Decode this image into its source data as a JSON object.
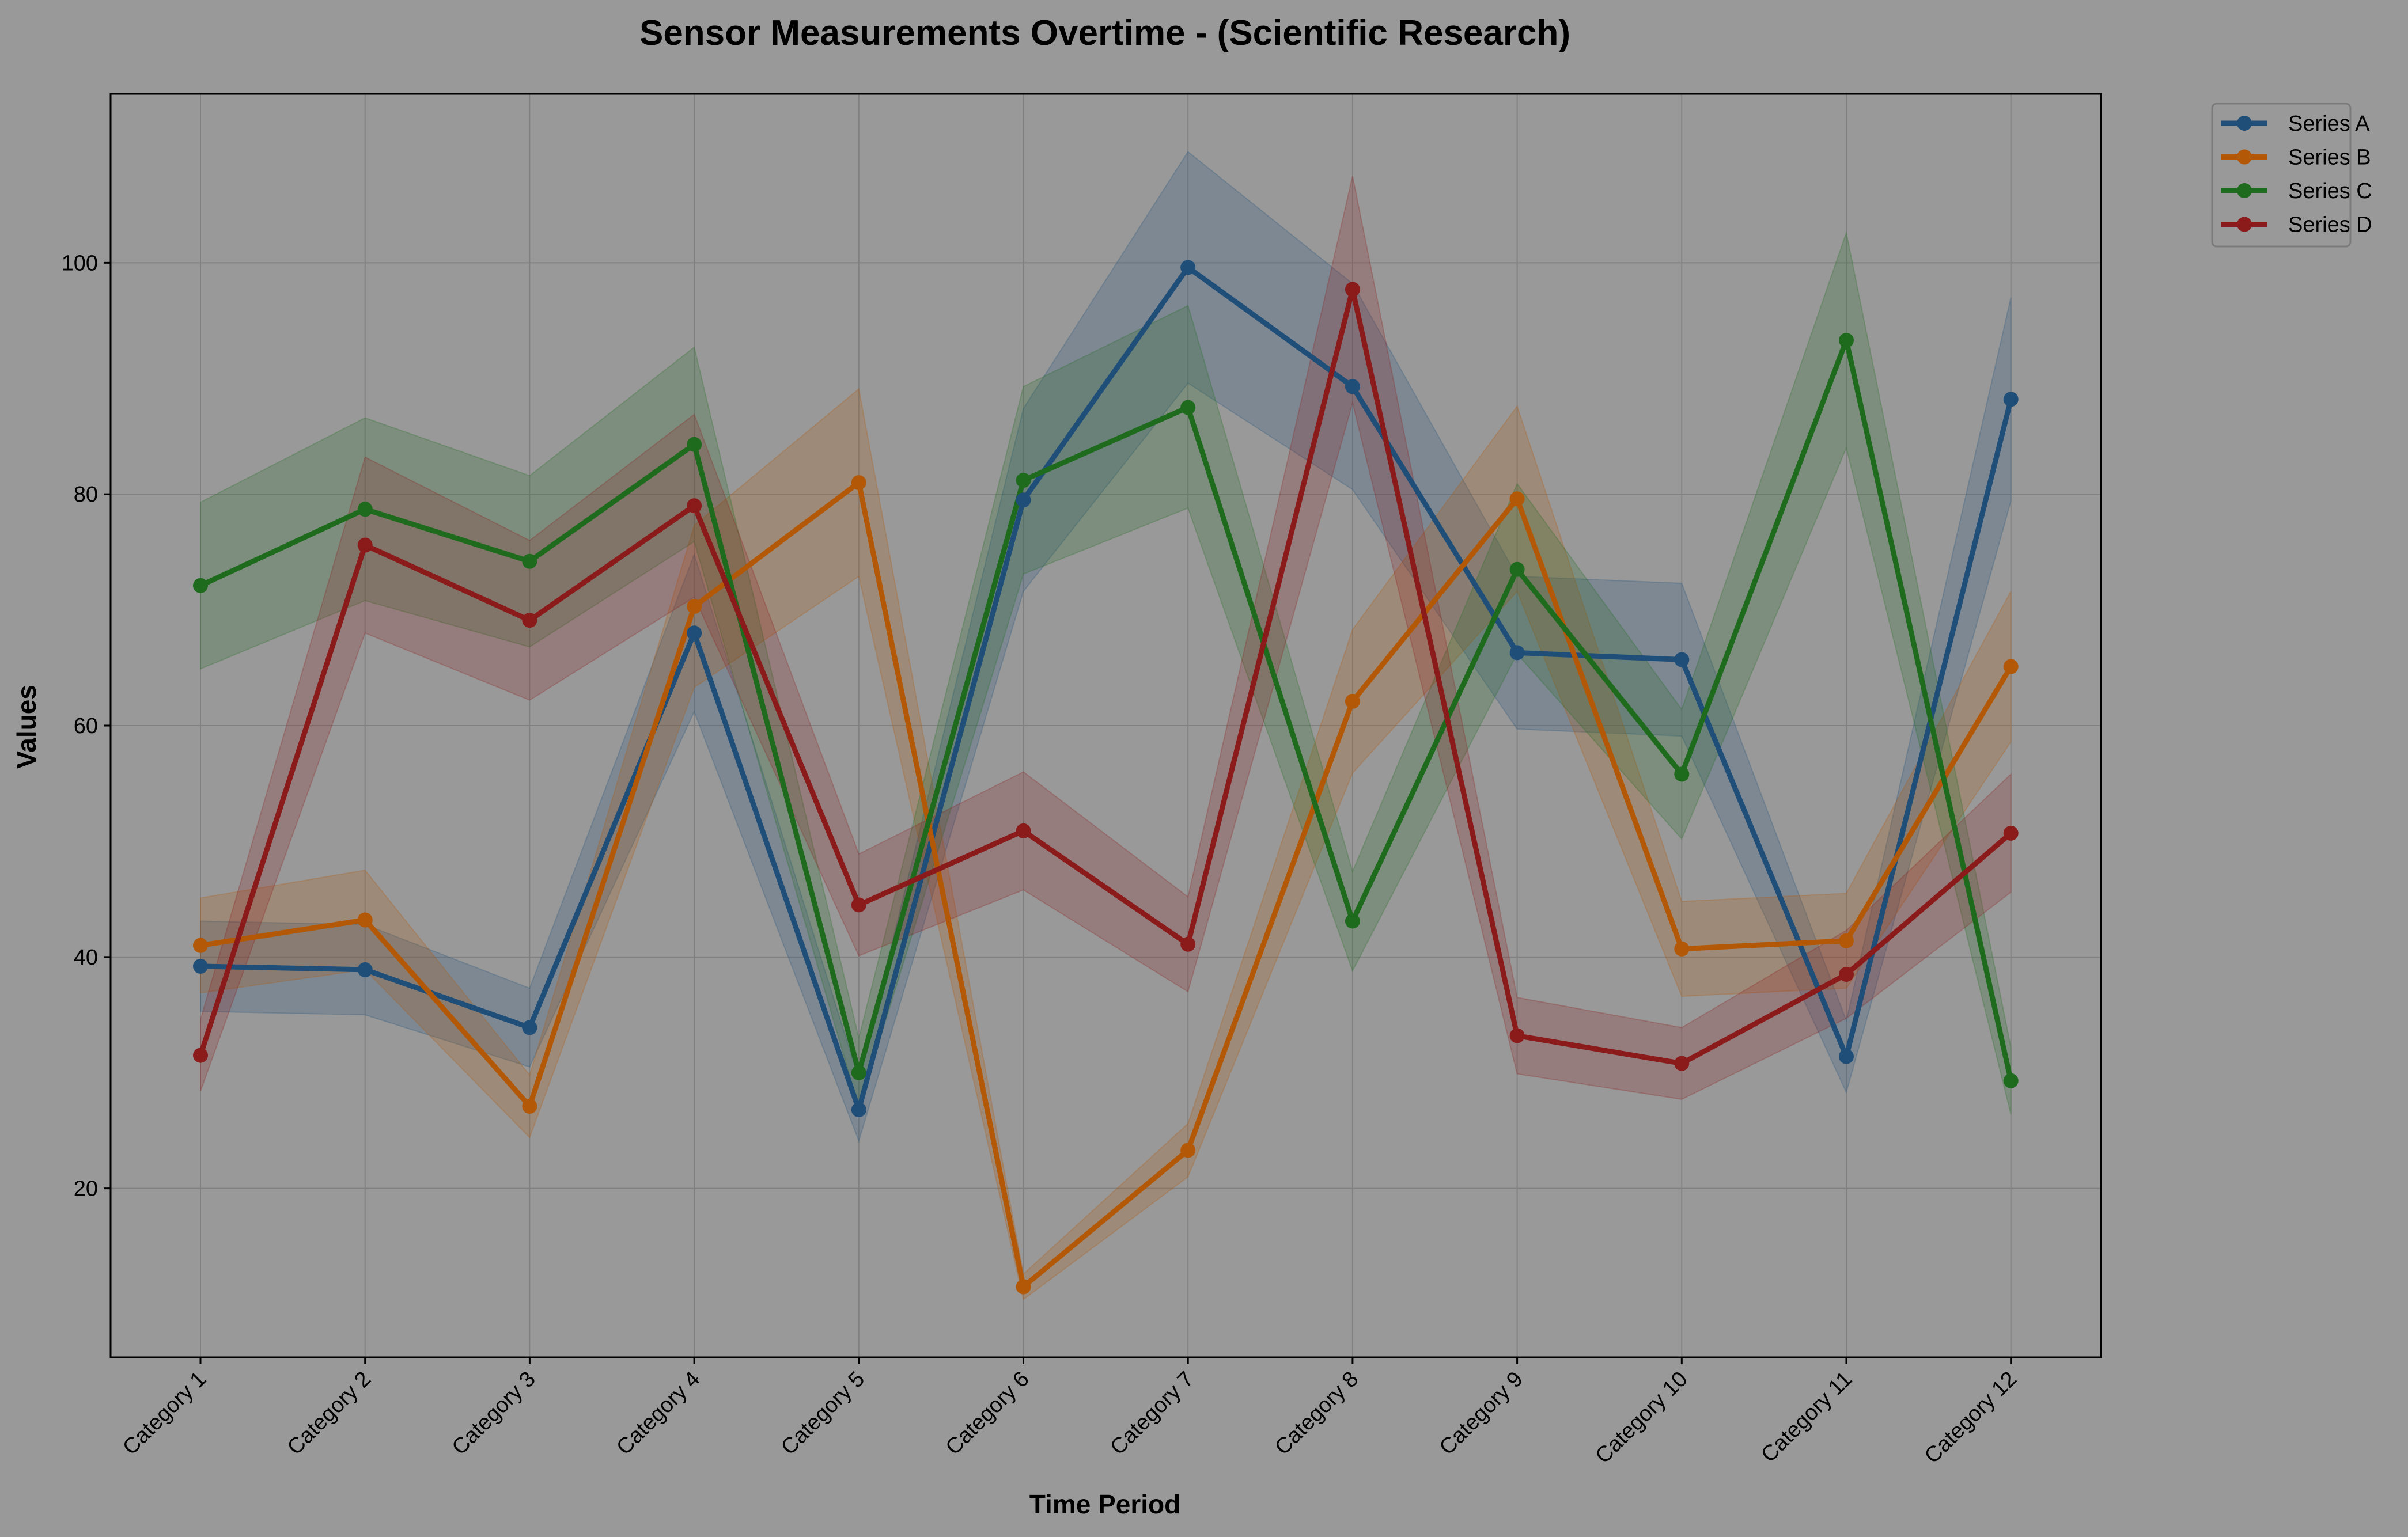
{
  "chart_data": {
    "type": "line",
    "title": "Sensor Measurements Overtime - (Scientific Research)",
    "xlabel": "Time Period",
    "ylabel": "Values",
    "categories": [
      "Category 1",
      "Category 2",
      "Category 3",
      "Category 4",
      "Category 5",
      "Category 6",
      "Category 7",
      "Category 8",
      "Category 9",
      "Category 10",
      "Category 11",
      "Category 12"
    ],
    "ylim": [
      5.4,
      114.6
    ],
    "yticks": [
      20,
      40,
      60,
      80,
      100
    ],
    "grid": true,
    "legend_position": "outside-top-right",
    "background_color": "#999999",
    "series": [
      {
        "name": "Series A",
        "color": "#1f4e79",
        "values": [
          39.2,
          38.9,
          33.9,
          68.0,
          26.8,
          79.5,
          99.6,
          89.3,
          66.3,
          65.7,
          31.4,
          88.2
        ],
        "lower": [
          35.3,
          35.0,
          30.5,
          61.2,
          24.1,
          71.6,
          89.6,
          80.4,
          59.7,
          59.1,
          28.3,
          79.4
        ],
        "upper": [
          43.1,
          42.8,
          37.3,
          74.8,
          29.5,
          87.4,
          109.6,
          98.2,
          72.9,
          72.3,
          34.5,
          97.0
        ]
      },
      {
        "name": "Series B",
        "color": "#b35806",
        "values": [
          41.0,
          43.2,
          27.1,
          70.3,
          81.0,
          11.5,
          23.3,
          62.1,
          79.6,
          40.7,
          41.4,
          65.1
        ],
        "lower": [
          36.9,
          38.9,
          24.4,
          63.3,
          72.9,
          10.4,
          21.0,
          55.9,
          71.6,
          36.6,
          37.3,
          58.6
        ],
        "upper": [
          45.1,
          47.5,
          29.8,
          77.3,
          89.1,
          12.6,
          25.6,
          68.3,
          87.6,
          44.8,
          45.5,
          71.6
        ]
      },
      {
        "name": "Series C",
        "color": "#1e6b1e",
        "values": [
          72.1,
          78.7,
          74.2,
          84.3,
          30.0,
          81.2,
          87.5,
          43.1,
          73.5,
          55.8,
          93.3,
          29.3
        ],
        "lower": [
          64.9,
          70.8,
          66.8,
          75.9,
          27.0,
          73.1,
          78.8,
          38.8,
          66.2,
          50.2,
          84.0,
          26.4
        ],
        "upper": [
          79.3,
          86.6,
          81.6,
          92.7,
          33.0,
          89.3,
          96.3,
          47.4,
          80.9,
          61.4,
          102.6,
          32.2
        ]
      },
      {
        "name": "Series D",
        "color": "#8b1a1a",
        "values": [
          31.5,
          75.6,
          69.1,
          79.0,
          44.5,
          50.9,
          41.1,
          97.7,
          33.2,
          30.8,
          38.5,
          50.7
        ],
        "lower": [
          28.4,
          68.0,
          62.2,
          71.1,
          40.1,
          45.8,
          37.0,
          87.9,
          29.9,
          27.7,
          34.7,
          45.6
        ],
        "upper": [
          34.6,
          83.2,
          76.0,
          86.9,
          48.9,
          56.0,
          45.2,
          107.5,
          36.5,
          33.9,
          42.3,
          55.8
        ]
      }
    ]
  }
}
